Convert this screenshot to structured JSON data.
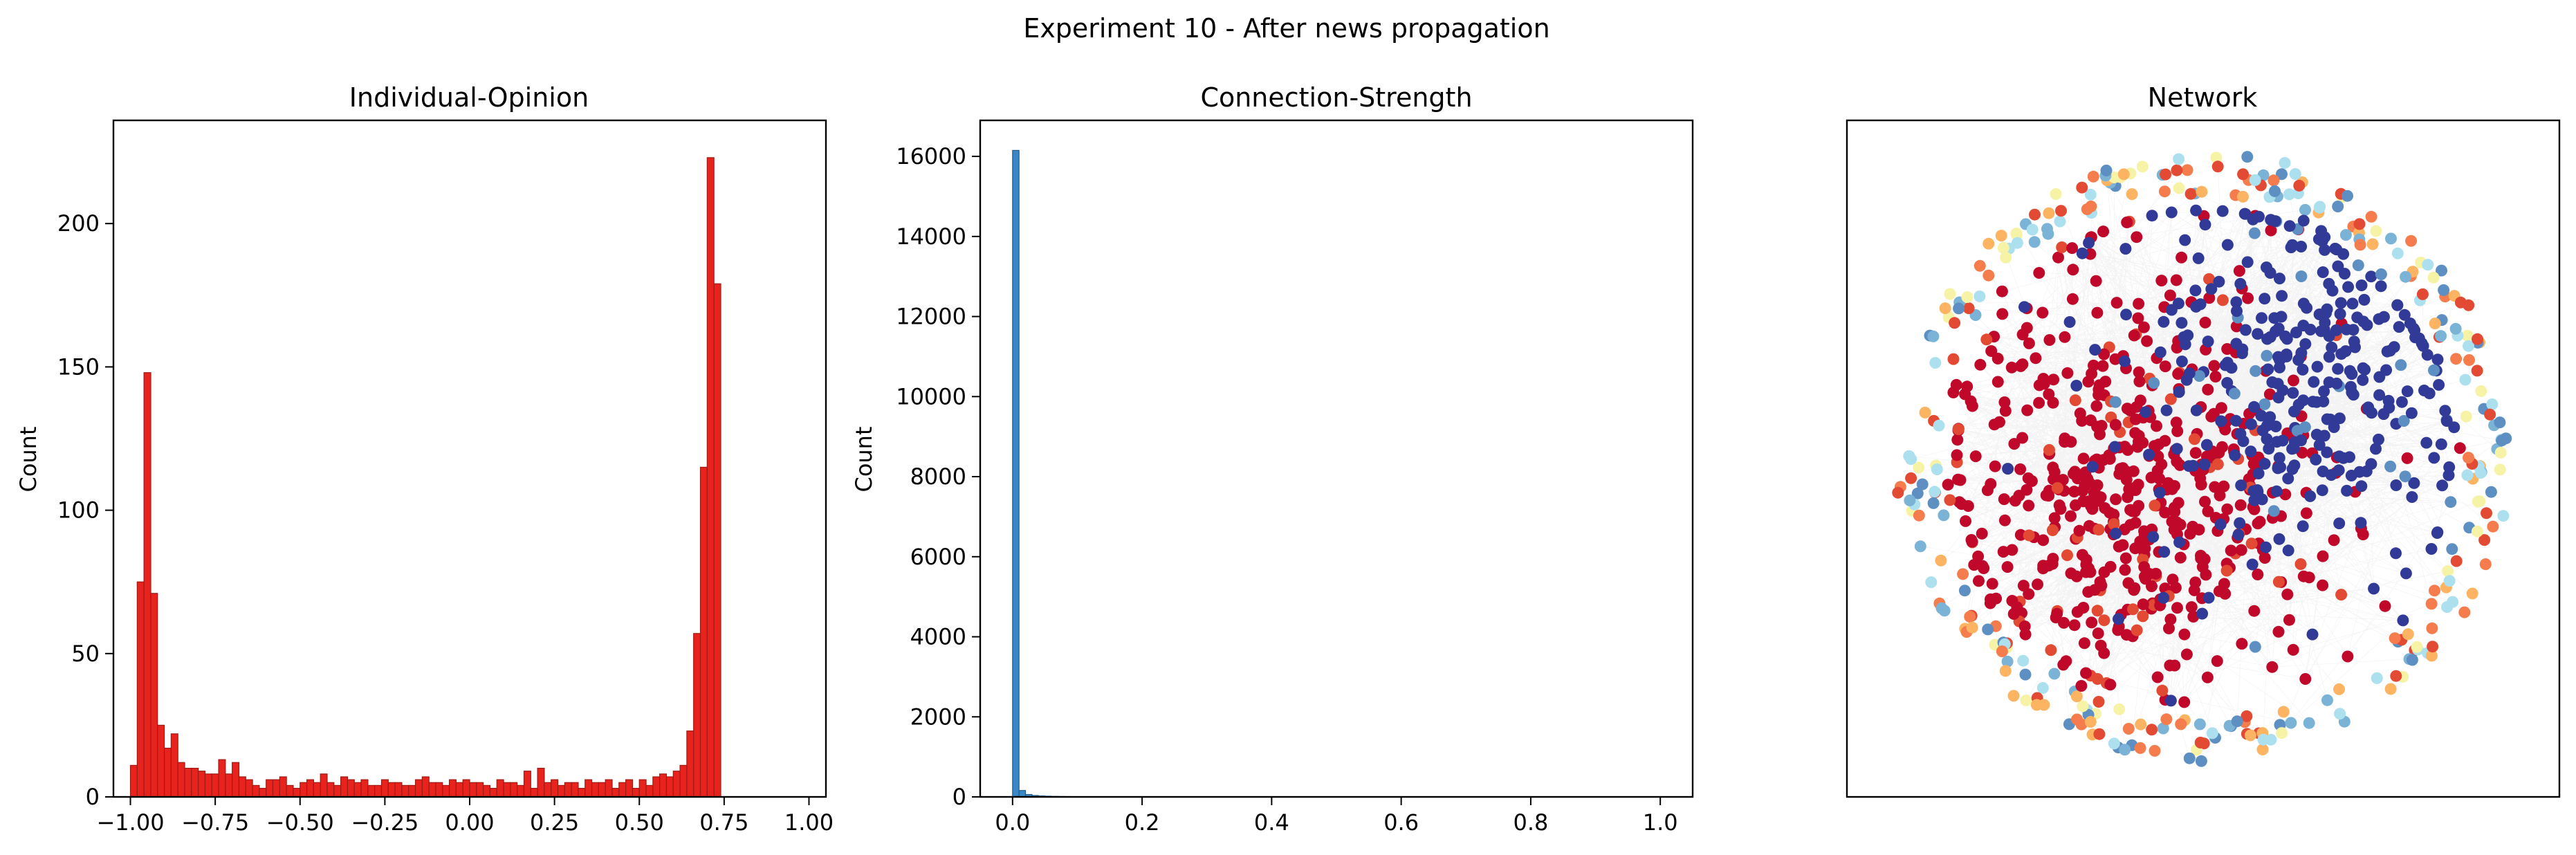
{
  "figure_title": "Experiment 10 - After news propagation",
  "chart_data": [
    {
      "type": "bar",
      "title": "Individual-Opinion",
      "xlabel": "",
      "ylabel": "Count",
      "xlim": [
        -1.05,
        1.05
      ],
      "ylim": [
        0,
        236
      ],
      "bin_start": -1.0,
      "bin_width": 0.02,
      "color": "#e8221c",
      "edge_color": "#a01a15",
      "xticks": [
        -1.0,
        -0.75,
        -0.5,
        -0.25,
        0.0,
        0.25,
        0.5,
        0.75,
        1.0
      ],
      "xtick_labels": [
        "−1.00",
        "−0.75",
        "−0.50",
        "−0.25",
        "0.00",
        "0.25",
        "0.50",
        "0.75",
        "1.00"
      ],
      "yticks": [
        0,
        50,
        100,
        150,
        200
      ],
      "ytick_labels": [
        "0",
        "50",
        "100",
        "150",
        "200"
      ],
      "values": [
        11,
        75,
        148,
        71,
        25,
        17,
        22,
        12,
        10,
        10,
        9,
        8,
        8,
        13,
        8,
        12,
        7,
        6,
        4,
        3,
        6,
        6,
        7,
        4,
        3,
        5,
        6,
        5,
        8,
        5,
        4,
        7,
        6,
        5,
        6,
        4,
        4,
        6,
        5,
        5,
        4,
        4,
        6,
        7,
        5,
        5,
        4,
        6,
        5,
        6,
        5,
        5,
        4,
        3,
        6,
        5,
        5,
        4,
        9,
        3,
        10,
        5,
        6,
        4,
        5,
        5,
        3,
        6,
        5,
        5,
        6,
        3,
        5,
        6,
        3,
        6,
        4,
        7,
        8,
        7,
        9,
        11,
        23,
        57,
        115,
        223,
        179
      ]
    },
    {
      "type": "bar",
      "title": "Connection-Strength",
      "xlabel": "",
      "ylabel": "Count",
      "xlim": [
        -0.05,
        1.05
      ],
      "ylim": [
        0,
        16900
      ],
      "bin_start": 0.0,
      "bin_width": 0.01,
      "color": "#3a87c5",
      "edge_color": "#1f5c8c",
      "xticks": [
        0.0,
        0.2,
        0.4,
        0.6,
        0.8,
        1.0
      ],
      "xtick_labels": [
        "0.0",
        "0.2",
        "0.4",
        "0.6",
        "0.8",
        "1.0"
      ],
      "yticks": [
        0,
        2000,
        4000,
        6000,
        8000,
        10000,
        12000,
        14000,
        16000
      ],
      "ytick_labels": [
        "0",
        "2000",
        "4000",
        "6000",
        "8000",
        "10000",
        "12000",
        "14000",
        "16000"
      ],
      "values": [
        16150,
        160,
        60,
        35,
        25,
        18,
        12,
        10,
        8,
        6,
        5,
        4,
        3,
        3,
        2,
        2,
        2,
        1,
        1,
        1
      ]
    },
    {
      "type": "scatter",
      "title": "Network",
      "xlabel": "",
      "ylabel": "",
      "note": "network graph: ~1000 nodes colored by opinion (RdYlBu), gray edges, no axis ticks",
      "colors": {
        "node_red": "#c0092a",
        "node_blue": "#313a97",
        "mid_colors": [
          "#f57d4d",
          "#fdb462",
          "#f7f3a6",
          "#ace0ee",
          "#7ab3d6",
          "#5d8fc2",
          "#e34a33"
        ],
        "edge": "#9a9a9a"
      }
    }
  ]
}
